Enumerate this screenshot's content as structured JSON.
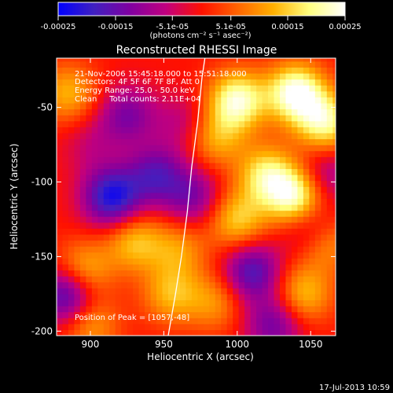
{
  "colorbar": {
    "ticks": [
      "-0.00025",
      "-0.00015",
      "-5.1e-05",
      "5.1e-05",
      "0.00015",
      "0.00025"
    ],
    "unit_label": "(photons cm⁻² s⁻¹ asec⁻²)",
    "colors": [
      "#0000ff",
      "#4020c0",
      "#8000a0",
      "#c0007f",
      "#ff1000",
      "#ff6400",
      "#ffb000",
      "#ffff80",
      "#ffffff"
    ]
  },
  "chart_data": {
    "type": "heatmap",
    "title": "Reconstructed RHESSI Image",
    "xlabel": "Heliocentric X (arcsec)",
    "ylabel": "Heliocentric Y (arcsec)",
    "xlim": [
      877,
      1067
    ],
    "ylim": [
      -203,
      -17
    ],
    "x_ticks": [
      900,
      950,
      1000,
      1050
    ],
    "y_ticks": [
      -50,
      -100,
      -150,
      -200
    ],
    "value_range": [
      -0.00025,
      0.00025
    ],
    "limb_curve": [
      [
        953,
        -203
      ],
      [
        958,
        -175
      ],
      [
        962,
        -150
      ],
      [
        966,
        -120
      ],
      [
        969,
        -90
      ],
      [
        973,
        -60
      ],
      [
        976,
        -30
      ],
      [
        978,
        -17
      ]
    ],
    "annotations": [
      "21-Nov-2006 15:45:18.000 to 15:51:18.000",
      "Detectors: 4F 5F 6F 7F 8F, Att 0",
      "Energy Range: 25.0 - 50.0 keV",
      "Clean     Total counts: 2.11E+04",
      "Position of Peak = [1057,-48]"
    ],
    "blobs": [
      {
        "x": 1040,
        "y": -40,
        "v": 1.0
      },
      {
        "x": 1000,
        "y": -45,
        "v": 0.9
      },
      {
        "x": 1060,
        "y": -60,
        "v": 0.8
      },
      {
        "x": 985,
        "y": -70,
        "v": 0.5
      },
      {
        "x": 1040,
        "y": -110,
        "v": 0.95
      },
      {
        "x": 1020,
        "y": -95,
        "v": 0.7
      },
      {
        "x": 1000,
        "y": -125,
        "v": 0.6
      },
      {
        "x": 1045,
        "y": -175,
        "v": 0.55
      },
      {
        "x": 1060,
        "y": -140,
        "v": 0.5
      },
      {
        "x": 985,
        "y": -180,
        "v": 0.4
      },
      {
        "x": 885,
        "y": -40,
        "v": 0.5
      },
      {
        "x": 930,
        "y": -140,
        "v": 0.55
      },
      {
        "x": 895,
        "y": -160,
        "v": 0.6
      },
      {
        "x": 955,
        "y": -175,
        "v": 0.5
      },
      {
        "x": 900,
        "y": -195,
        "v": 0.45
      },
      {
        "x": 960,
        "y": -145,
        "v": 0.4
      },
      {
        "x": 925,
        "y": -55,
        "v": -0.5
      },
      {
        "x": 915,
        "y": -110,
        "v": -0.9
      },
      {
        "x": 885,
        "y": -175,
        "v": -0.85
      },
      {
        "x": 945,
        "y": -95,
        "v": -0.6
      },
      {
        "x": 1010,
        "y": -160,
        "v": -0.7
      },
      {
        "x": 1050,
        "y": -130,
        "v": -0.5
      },
      {
        "x": 1060,
        "y": -95,
        "v": -0.4
      },
      {
        "x": 970,
        "y": -110,
        "v": -0.5
      },
      {
        "x": 965,
        "y": -60,
        "v": -0.3
      },
      {
        "x": 1025,
        "y": -195,
        "v": -0.55
      },
      {
        "x": 900,
        "y": -75,
        "v": -0.2
      }
    ]
  },
  "footer": {
    "timestamp": "17-Jul-2013 10:59"
  }
}
